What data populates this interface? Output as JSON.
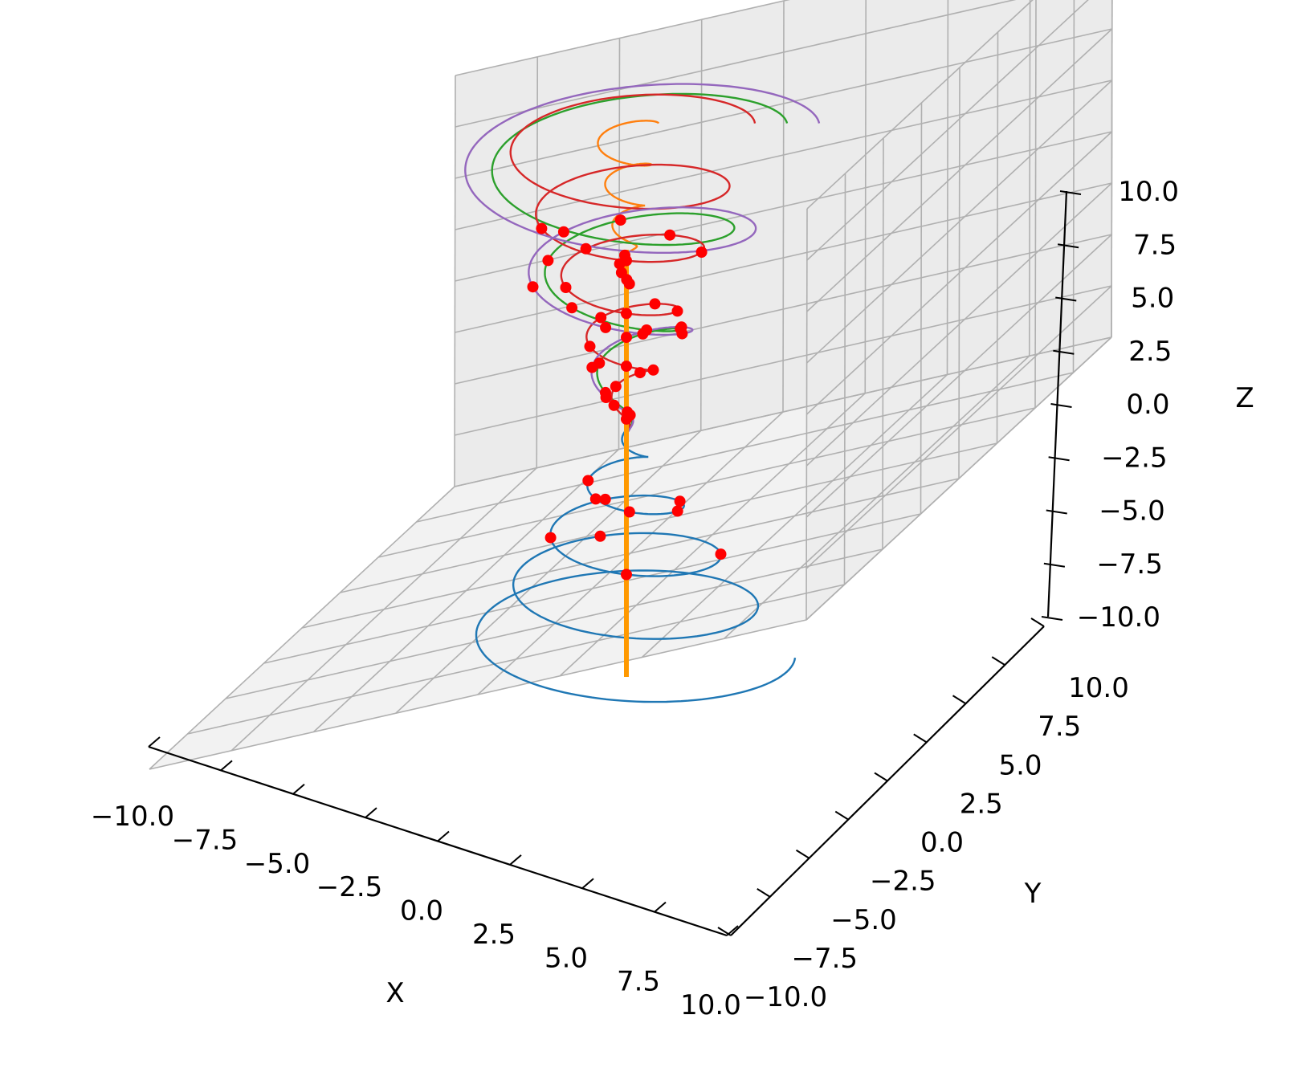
{
  "chart_data": {
    "type": "line3d",
    "title": "",
    "xlabel": "X",
    "ylabel": "Y",
    "zlabel": "Z",
    "xlim": [
      -10,
      10
    ],
    "ylim": [
      -10,
      10
    ],
    "zlim": [
      -10,
      10
    ],
    "x_ticks": [
      "−10.0",
      "−7.5",
      "−5.0",
      "−2.5",
      "0.0",
      "2.5",
      "5.0",
      "7.5",
      "10.0"
    ],
    "y_ticks": [
      "−10.0",
      "−7.5",
      "−5.0",
      "−2.5",
      "0.0",
      "2.5",
      "5.0",
      "7.5",
      "10.0"
    ],
    "z_ticks": [
      "−10.0",
      "−7.5",
      "−5.0",
      "−2.5",
      "0.0",
      "2.5",
      "5.0",
      "7.5",
      "10.0"
    ],
    "grid": true,
    "legend": "none",
    "colors": {
      "pane": "#f2f2f2",
      "grid": "#b0b0b0",
      "marker": "#ff0000",
      "axis_line": "#ff9900"
    },
    "series": [
      {
        "color": "#1f77b4",
        "curve": "spiral",
        "z_range": [
          -12,
          -1
        ],
        "radius_at_start": 10.5,
        "radius_at_end": 0.1,
        "turns": 4.5
      },
      {
        "color": "#ff7f0e",
        "curve": "spiral",
        "z_range": [
          6,
          14
        ],
        "radius_at_start": 0.2,
        "radius_at_end": 2,
        "turns": 4
      },
      {
        "color": "#2ca02c",
        "curve": "spiral",
        "z_range": [
          -1,
          14
        ],
        "radius_at_start": 0.1,
        "radius_at_end": 10,
        "turns": 3
      },
      {
        "color": "#d62728",
        "curve": "spiral",
        "z_range": [
          -1,
          14
        ],
        "radius_at_start": 0.1,
        "radius_at_end": 8,
        "turns": 5
      },
      {
        "color": "#9467bd",
        "curve": "spiral",
        "z_range": [
          -1,
          14
        ],
        "radius_at_start": 0.1,
        "radius_at_end": 12,
        "turns": 3
      }
    ],
    "vertical_line": {
      "x": 0,
      "y": 0,
      "z": [
        -10,
        10
      ]
    },
    "markers": [
      {
        "series": 0,
        "t": [
          0.78,
          0.75,
          0.72,
          0.68,
          0.65,
          0.6,
          0.55,
          0.5,
          0.44,
          0.38
        ]
      },
      {
        "series": 2,
        "t": [
          0.08,
          0.14,
          0.2,
          0.27,
          0.33,
          0.4,
          0.46,
          0.52,
          0.58
        ]
      },
      {
        "series": 3,
        "t": [
          0.05,
          0.09,
          0.13,
          0.17,
          0.21,
          0.25,
          0.29,
          0.33,
          0.37,
          0.41,
          0.45,
          0.49,
          0.53,
          0.57,
          0.61,
          0.65,
          0.69
        ]
      },
      {
        "series": 4,
        "t": [
          0.07,
          0.13,
          0.19,
          0.25,
          0.31,
          0.37,
          0.43,
          0.49,
          0.55
        ]
      },
      {
        "series": 1,
        "t": [
          0.03,
          0.06,
          0.1,
          0.14,
          0.18
        ]
      }
    ]
  }
}
